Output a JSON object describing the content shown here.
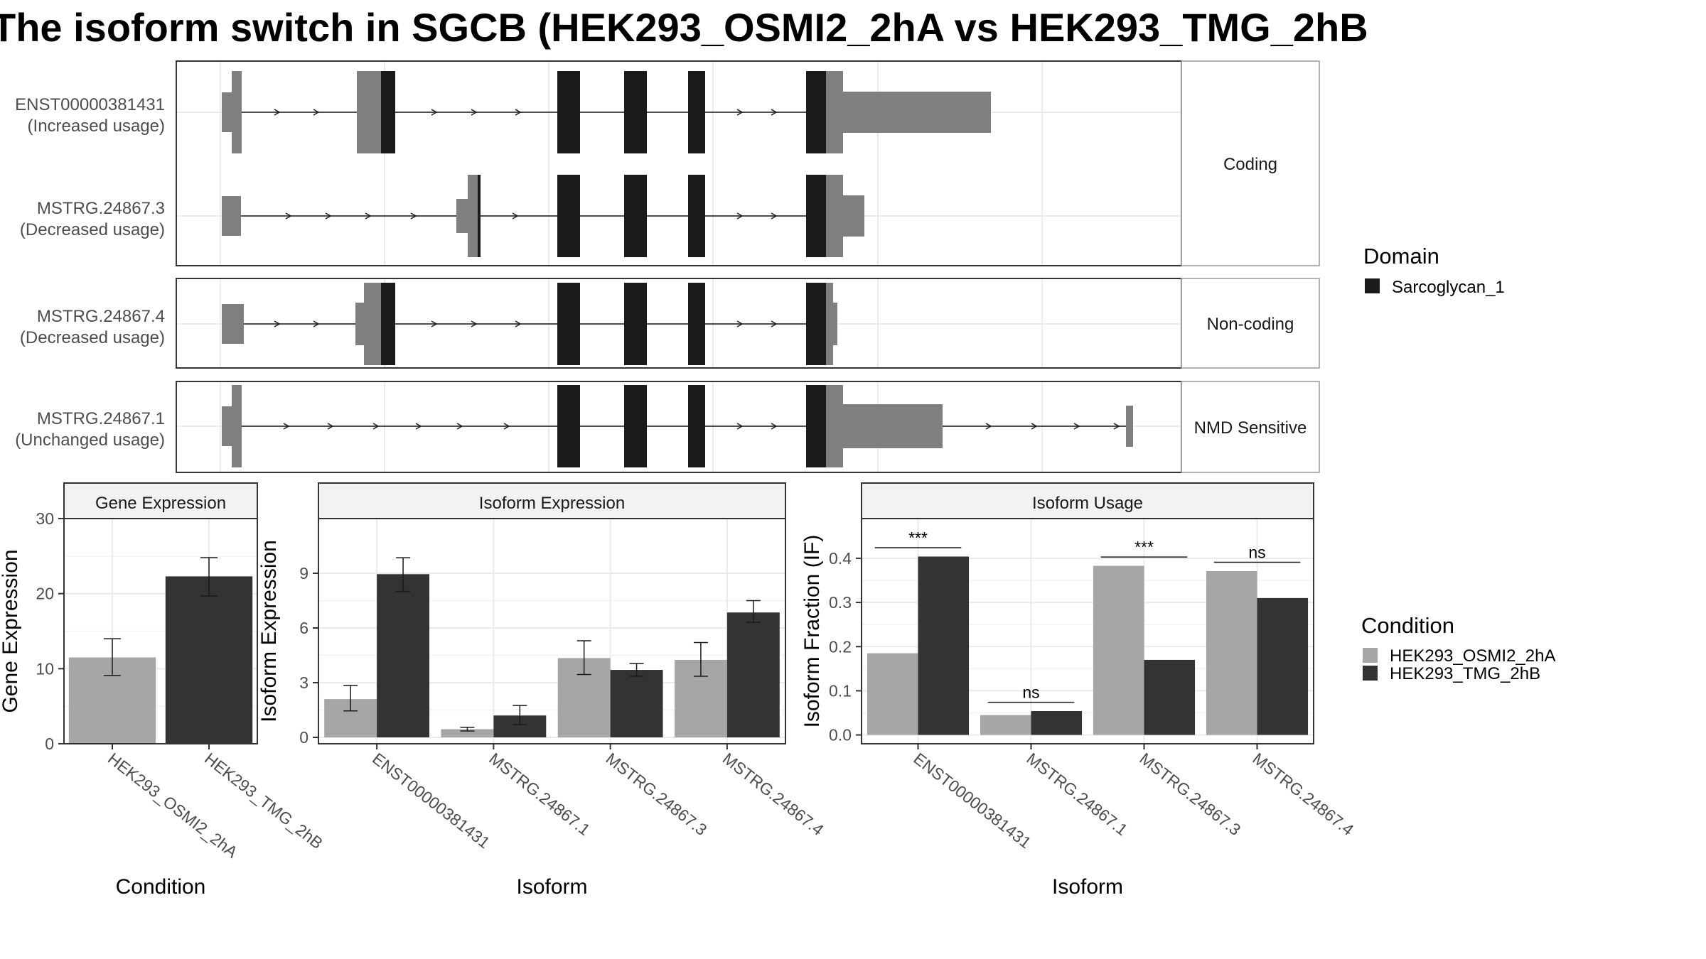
{
  "title": "The isoform switch in SGCB (HEK293_OSMI2_2hA vs HEK293_TMG_2hB",
  "colors": {
    "utr": "#7f7f7f",
    "domain": "#1a1a1a",
    "condition_a": "#a6a6a6",
    "condition_b": "#333333",
    "grid": "#ebebeb",
    "strip": "#f2f2f2"
  },
  "structure": {
    "groups": [
      {
        "label": "Coding",
        "transcripts": [
          "ENST00000381431",
          "MSTRG.24867.3"
        ]
      },
      {
        "label": "Non-coding",
        "transcripts": [
          "MSTRG.24867.4"
        ]
      },
      {
        "label": "NMD Sensitive",
        "transcripts": [
          "MSTRG.24867.1"
        ]
      }
    ],
    "transcripts": [
      {
        "id": "ENST00000381431",
        "usage": "(Increased usage)"
      },
      {
        "id": "MSTRG.24867.3",
        "usage": "(Decreased usage)"
      },
      {
        "id": "MSTRG.24867.4",
        "usage": "(Decreased usage)"
      },
      {
        "id": "MSTRG.24867.1",
        "usage": "(Unchanged usage)"
      }
    ],
    "domain_legend": {
      "title": "Domain",
      "items": [
        {
          "label": "Sarcoglycan_1",
          "color": "#1a1a1a"
        }
      ]
    }
  },
  "chart_data": [
    {
      "type": "bar",
      "panel": "Gene Expression",
      "categories": [
        "HEK293_OSMI2_2hA",
        "HEK293_TMG_2hB"
      ],
      "values": [
        11.5,
        22.3
      ],
      "error_low": [
        9.1,
        19.7
      ],
      "error_high": [
        14.0,
        24.8
      ],
      "colors": [
        "#a6a6a6",
        "#333333"
      ],
      "ylim": [
        0,
        30
      ],
      "yticks": [
        0,
        10,
        20,
        30
      ],
      "xlabel": "Condition",
      "ylabel": "Gene Expression"
    },
    {
      "type": "bar",
      "panel": "Isoform Expression",
      "categories": [
        "ENST00000381431",
        "MSTRG.24867.1",
        "MSTRG.24867.3",
        "MSTRG.24867.4"
      ],
      "series": [
        {
          "name": "HEK293_OSMI2_2hA",
          "values": [
            2.1,
            0.45,
            4.35,
            4.25
          ],
          "error_low": [
            1.45,
            0.35,
            3.45,
            3.35
          ],
          "error_high": [
            2.85,
            0.55,
            5.3,
            5.2
          ]
        },
        {
          "name": "HEK293_TMG_2hB",
          "values": [
            8.95,
            1.2,
            3.7,
            6.85
          ],
          "error_low": [
            8.0,
            0.7,
            3.35,
            6.3
          ],
          "error_high": [
            9.85,
            1.75,
            4.05,
            7.5
          ]
        }
      ],
      "ylim": [
        -0.35,
        12.0
      ],
      "yticks": [
        0,
        3,
        6,
        9
      ],
      "xlabel": "Isoform",
      "ylabel": "Isoform Expression"
    },
    {
      "type": "bar",
      "panel": "Isoform Usage",
      "categories": [
        "ENST00000381431",
        "MSTRG.24867.1",
        "MSTRG.24867.3",
        "MSTRG.24867.4"
      ],
      "series": [
        {
          "name": "HEK293_OSMI2_2hA",
          "values": [
            0.185,
            0.045,
            0.383,
            0.371
          ]
        },
        {
          "name": "HEK293_TMG_2hB",
          "values": [
            0.404,
            0.054,
            0.17,
            0.31
          ]
        }
      ],
      "significance": [
        "***",
        "ns",
        "***",
        "ns"
      ],
      "ylim": [
        -0.02,
        0.49
      ],
      "yticks": [
        "0.0",
        "0.1",
        "0.2",
        "0.3",
        "0.4"
      ],
      "xlabel": "Isoform",
      "ylabel": "Isoform Fraction (IF)"
    }
  ],
  "condition_legend": {
    "title": "Condition",
    "items": [
      {
        "label": "HEK293_OSMI2_2hA",
        "color": "#a6a6a6"
      },
      {
        "label": "HEK293_TMG_2hB",
        "color": "#333333"
      }
    ]
  }
}
